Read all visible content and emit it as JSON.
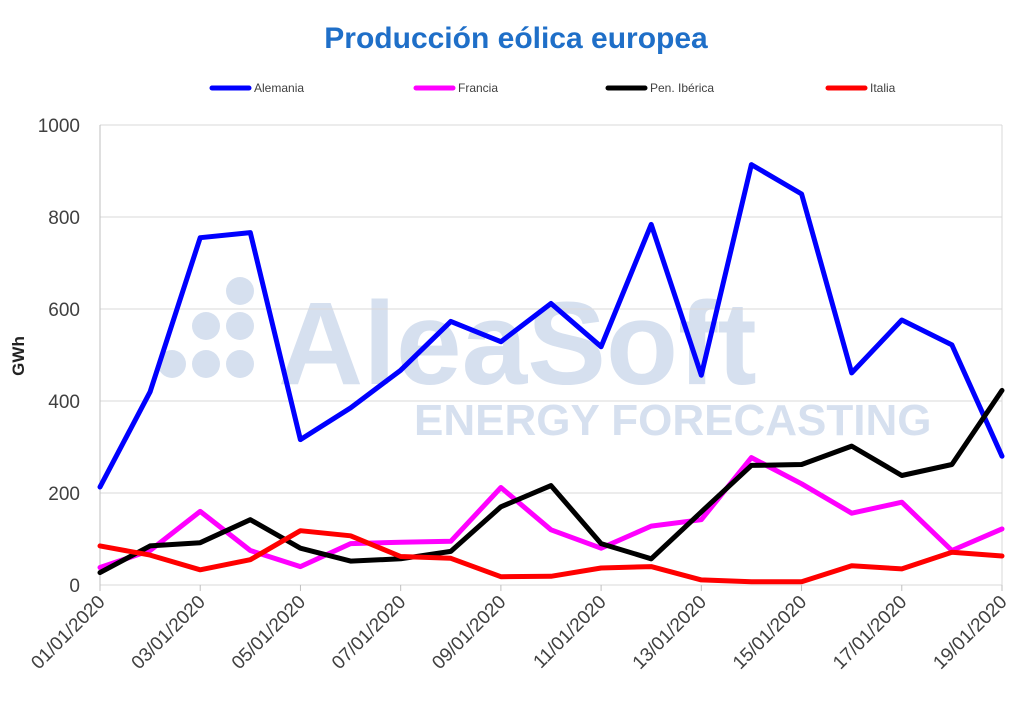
{
  "watermark": {
    "brand": "AleaSoft",
    "tagline": "ENERGY FORECASTING"
  },
  "chart_data": {
    "type": "line",
    "title": "Producción eólica europea",
    "ylabel": "GWh",
    "xlabel": "",
    "ylim": [
      0,
      1000
    ],
    "yticks": [
      0,
      200,
      400,
      600,
      800,
      1000
    ],
    "grid": "horizontal",
    "legend_position": "top",
    "x": [
      "01/01/2020",
      "02/01/2020",
      "03/01/2020",
      "04/01/2020",
      "05/01/2020",
      "06/01/2020",
      "07/01/2020",
      "08/01/2020",
      "09/01/2020",
      "10/01/2020",
      "11/01/2020",
      "12/01/2020",
      "13/01/2020",
      "14/01/2020",
      "15/01/2020",
      "16/01/2020",
      "17/01/2020",
      "18/01/2020",
      "19/01/2020"
    ],
    "xtick_labels": [
      "01/01/2020",
      "03/01/2020",
      "05/01/2020",
      "07/01/2020",
      "09/01/2020",
      "11/01/2020",
      "13/01/2020",
      "15/01/2020",
      "17/01/2020",
      "19/01/2020"
    ],
    "series": [
      {
        "name": "Alemania",
        "color": "#0000ff",
        "values": [
          213,
          420,
          755,
          766,
          316,
          385,
          467,
          573,
          529,
          612,
          518,
          784,
          456,
          914,
          850,
          461,
          576,
          522,
          280
        ]
      },
      {
        "name": "Francia",
        "color": "#ff00ff",
        "values": [
          38,
          75,
          160,
          75,
          40,
          90,
          93,
          95,
          212,
          120,
          80,
          128,
          142,
          277,
          220,
          156,
          180,
          75,
          122
        ]
      },
      {
        "name": "Pen. Ibérica",
        "color": "#000000",
        "values": [
          27,
          85,
          92,
          142,
          80,
          52,
          57,
          73,
          170,
          216,
          90,
          57,
          159,
          260,
          262,
          302,
          238,
          262,
          423
        ]
      },
      {
        "name": "Italia",
        "color": "#ff0000",
        "values": [
          85,
          65,
          33,
          55,
          118,
          107,
          62,
          58,
          18,
          19,
          37,
          40,
          11,
          7,
          7,
          42,
          35,
          71,
          63
        ]
      }
    ]
  }
}
